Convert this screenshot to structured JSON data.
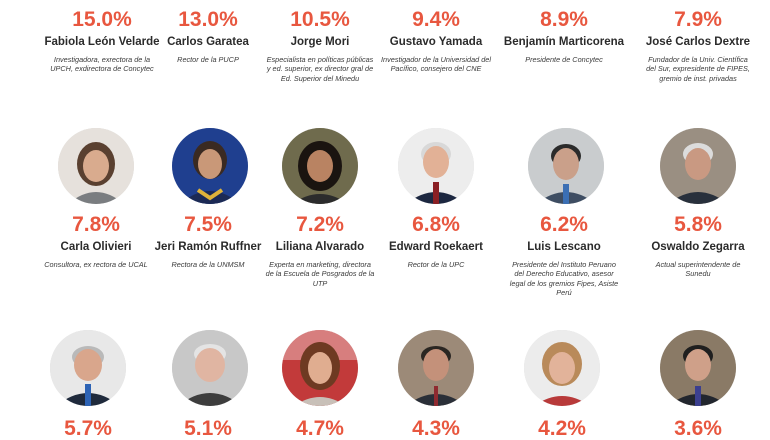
{
  "row1": [
    {
      "pct": "15.0%",
      "name": "Fabiola León Velarde",
      "desc": "Investigadora, exrectora de la UPCH, exdirectora de Concytec"
    },
    {
      "pct": "13.0%",
      "name": "Carlos Garatea",
      "desc": "Rector de la PUCP"
    },
    {
      "pct": "10.5%",
      "name": "Jorge Mori",
      "desc": "Especialista en políticas públicas y ed. superior, ex director gral de Ed. Superior del Minedu"
    },
    {
      "pct": "9.4%",
      "name": "Gustavo Yamada",
      "desc": "Investigador de la Universidad del Pacífico, consejero del CNE"
    },
    {
      "pct": "8.9%",
      "name": "Benjamín Marticorena",
      "desc": "Presidente de Concytec"
    },
    {
      "pct": "7.9%",
      "name": "José Carlos Dextre",
      "desc": "Fundador de la Univ. Científica del Sur, expresidente de FIPES, gremio de inst. privadas"
    }
  ],
  "row2": [
    {
      "pct": "7.8%",
      "name": "Carla Olivieri",
      "desc": "Consultora, ex rectora de UCAL"
    },
    {
      "pct": "7.5%",
      "name": "Jeri Ramón Ruffner",
      "desc": "Rectora de la UNMSM"
    },
    {
      "pct": "7.2%",
      "name": "Liliana Alvarado",
      "desc": "Experta en marketing, directora de la Escuela de Posgrados de la UTP"
    },
    {
      "pct": "6.8%",
      "name": "Edward Roekaert",
      "desc": "Rector de la UPC"
    },
    {
      "pct": "6.2%",
      "name": "Luis Lescano",
      "desc": "Presidente del Instituto Peruano del Derecho Educativo, asesor legal de los gremios Fipes, Asiste Perú"
    },
    {
      "pct": "5.8%",
      "name": "Oswaldo Zegarra",
      "desc": "Actual superintendente de Sunedu"
    }
  ],
  "row3": [
    {
      "pct": "5.7%"
    },
    {
      "pct": "5.1%"
    },
    {
      "pct": "4.7%"
    },
    {
      "pct": "4.3%"
    },
    {
      "pct": "4.2%"
    },
    {
      "pct": "3.6%"
    }
  ],
  "colors": {
    "accent": "#e8573f",
    "name": "#2b2b2b",
    "desc": "#3a3a3a"
  }
}
